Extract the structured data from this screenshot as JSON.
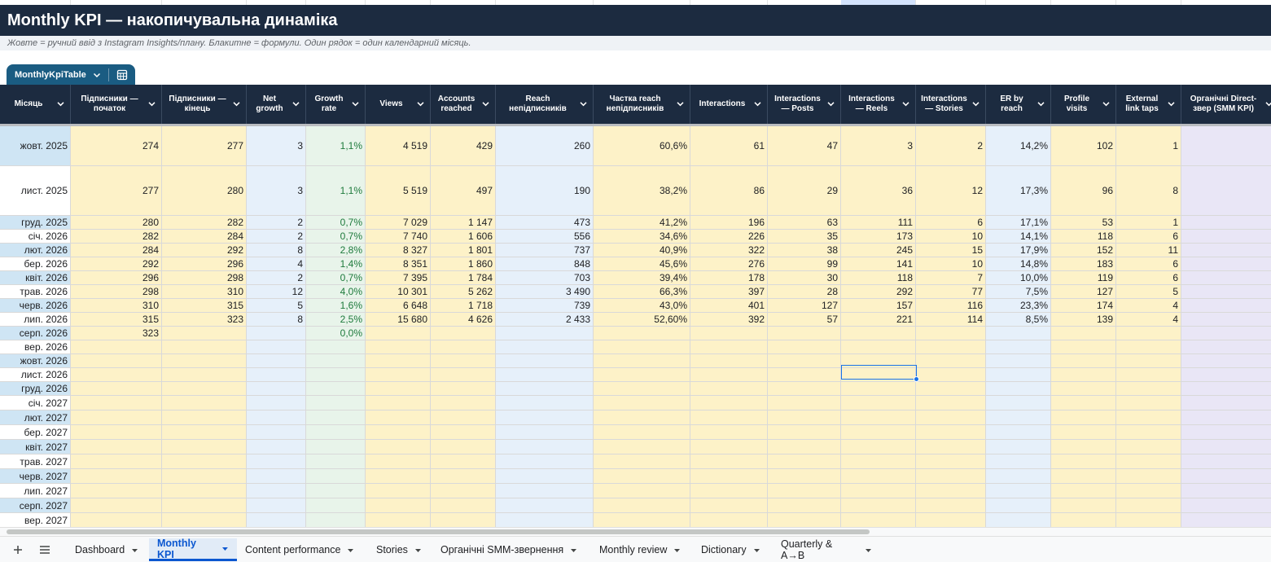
{
  "title": "Monthly KPI — накопичувальна динаміка",
  "subtitle": "Жовте = ручний ввід з Instagram Insights/плану. Блакитне = формули. Один рядок = один календарний місяць.",
  "table_name": "MonthlyKpiTable",
  "columns": [
    {
      "label": "Місяць",
      "kind": "w"
    },
    {
      "label": "Підписники — початок",
      "kind": "y"
    },
    {
      "label": "Підписники — кінець",
      "kind": "y"
    },
    {
      "label": "Net growth",
      "kind": "b"
    },
    {
      "label": "Growth rate",
      "kind": "g"
    },
    {
      "label": "Views",
      "kind": "y"
    },
    {
      "label": "Accounts reached",
      "kind": "y"
    },
    {
      "label": "Reach непідписників",
      "kind": "b"
    },
    {
      "label": "Частка reach непідписників",
      "kind": "y"
    },
    {
      "label": "Interactions",
      "kind": "y"
    },
    {
      "label": "Interactions — Posts",
      "kind": "y"
    },
    {
      "label": "Interactions — Reels",
      "kind": "y"
    },
    {
      "label": "Interactions — Stories",
      "kind": "y"
    },
    {
      "label": "ER by reach",
      "kind": "b"
    },
    {
      "label": "Profile visits",
      "kind": "y"
    },
    {
      "label": "External link taps",
      "kind": "y"
    },
    {
      "label": "Органічні Direct-звер (SMM KPI)",
      "kind": "p"
    }
  ],
  "rows": [
    [
      "жовт. 2025",
      "274",
      "277",
      "3",
      "1,1%",
      "4 519",
      "429",
      "260",
      "60,6%",
      "61",
      "47",
      "3",
      "2",
      "14,2%",
      "102",
      "1",
      ""
    ],
    [
      "лист. 2025",
      "277",
      "280",
      "3",
      "1,1%",
      "5 519",
      "497",
      "190",
      "38,2%",
      "86",
      "29",
      "36",
      "12",
      "17,3%",
      "96",
      "8",
      ""
    ],
    [
      "груд. 2025",
      "280",
      "282",
      "2",
      "0,7%",
      "7 029",
      "1 147",
      "473",
      "41,2%",
      "196",
      "63",
      "111",
      "6",
      "17,1%",
      "53",
      "1",
      ""
    ],
    [
      "січ. 2026",
      "282",
      "284",
      "2",
      "0,7%",
      "7 740",
      "1 606",
      "556",
      "34,6%",
      "226",
      "35",
      "173",
      "10",
      "14,1%",
      "118",
      "6",
      ""
    ],
    [
      "лют. 2026",
      "284",
      "292",
      "8",
      "2,8%",
      "8 327",
      "1 801",
      "737",
      "40,9%",
      "322",
      "38",
      "245",
      "15",
      "17,9%",
      "152",
      "11",
      ""
    ],
    [
      "бер. 2026",
      "292",
      "296",
      "4",
      "1,4%",
      "8 351",
      "1 860",
      "848",
      "45,6%",
      "276",
      "99",
      "141",
      "10",
      "14,8%",
      "183",
      "6",
      ""
    ],
    [
      "квіт. 2026",
      "296",
      "298",
      "2",
      "0,7%",
      "7 395",
      "1 784",
      "703",
      "39,4%",
      "178",
      "30",
      "118",
      "7",
      "10,0%",
      "119",
      "6",
      ""
    ],
    [
      "трав. 2026",
      "298",
      "310",
      "12",
      "4,0%",
      "10 301",
      "5 262",
      "3 490",
      "66,3%",
      "397",
      "28",
      "292",
      "77",
      "7,5%",
      "127",
      "5",
      ""
    ],
    [
      "черв. 2026",
      "310",
      "315",
      "5",
      "1,6%",
      "6 648",
      "1 718",
      "739",
      "43,0%",
      "401",
      "127",
      "157",
      "116",
      "23,3%",
      "174",
      "4",
      ""
    ],
    [
      "лип. 2026",
      "315",
      "323",
      "8",
      "2,5%",
      "15 680",
      "4 626",
      "2 433",
      "52,60%",
      "392",
      "57",
      "221",
      "114",
      "8,5%",
      "139",
      "4",
      ""
    ],
    [
      "серп. 2026",
      "323",
      "",
      "",
      "0,0%",
      "",
      "",
      "",
      "",
      "",
      "",
      "",
      "",
      "",
      "",
      "",
      ""
    ],
    [
      "вер. 2026",
      "",
      "",
      "",
      "",
      "",
      "",
      "",
      "",
      "",
      "",
      "",
      "",
      "",
      "",
      "",
      ""
    ],
    [
      "жовт. 2026",
      "",
      "",
      "",
      "",
      "",
      "",
      "",
      "",
      "",
      "",
      "",
      "",
      "",
      "",
      "",
      ""
    ],
    [
      "лист. 2026",
      "",
      "",
      "",
      "",
      "",
      "",
      "",
      "",
      "",
      "",
      "",
      "",
      "",
      "",
      "",
      ""
    ],
    [
      "груд. 2026",
      "",
      "",
      "",
      "",
      "",
      "",
      "",
      "",
      "",
      "",
      "",
      "",
      "",
      "",
      "",
      ""
    ],
    [
      "січ. 2027",
      "",
      "",
      "",
      "",
      "",
      "",
      "",
      "",
      "",
      "",
      "",
      "",
      "",
      "",
      "",
      ""
    ],
    [
      "лют. 2027",
      "",
      "",
      "",
      "",
      "",
      "",
      "",
      "",
      "",
      "",
      "",
      "",
      "",
      "",
      "",
      ""
    ],
    [
      "бер. 2027",
      "",
      "",
      "",
      "",
      "",
      "",
      "",
      "",
      "",
      "",
      "",
      "",
      "",
      "",
      "",
      ""
    ],
    [
      "квіт. 2027",
      "",
      "",
      "",
      "",
      "",
      "",
      "",
      "",
      "",
      "",
      "",
      "",
      "",
      "",
      "",
      ""
    ],
    [
      "трав. 2027",
      "",
      "",
      "",
      "",
      "",
      "",
      "",
      "",
      "",
      "",
      "",
      "",
      "",
      "",
      "",
      ""
    ],
    [
      "черв. 2027",
      "",
      "",
      "",
      "",
      "",
      "",
      "",
      "",
      "",
      "",
      "",
      "",
      "",
      "",
      "",
      ""
    ],
    [
      "лип. 2027",
      "",
      "",
      "",
      "",
      "",
      "",
      "",
      "",
      "",
      "",
      "",
      "",
      "",
      "",
      "",
      ""
    ],
    [
      "серп. 2027",
      "",
      "",
      "",
      "",
      "",
      "",
      "",
      "",
      "",
      "",
      "",
      "",
      "",
      "",
      "",
      ""
    ],
    [
      "вер. 2027",
      "",
      "",
      "",
      "",
      "",
      "",
      "",
      "",
      "",
      "",
      "",
      "",
      "",
      "",
      "",
      ""
    ]
  ],
  "highlighted_first_col_rows": [
    0,
    2,
    4,
    6,
    8,
    10,
    12,
    14,
    16,
    18,
    20,
    22
  ],
  "sheet_tabs": [
    {
      "label": "Dashboard",
      "active": false
    },
    {
      "label": "Monthly KPI",
      "active": true
    },
    {
      "label": "Content performance",
      "active": false
    },
    {
      "label": "Stories",
      "active": false
    },
    {
      "label": "Органічні SMM-звернення",
      "active": false
    },
    {
      "label": "Monthly review",
      "active": false
    },
    {
      "label": "Dictionary",
      "active": false
    },
    {
      "label": "Quarterly & A→B",
      "active": false
    }
  ],
  "colors": {
    "header_bg": "#1c2b40",
    "yellow_input": "#fdf2c8",
    "blue_formula": "#e6f0fa",
    "green_rate": "#e8f4ea",
    "purple_kpi": "#e9e6f6",
    "table_tab": "#1a5c82",
    "selection": "#1a73e8"
  }
}
